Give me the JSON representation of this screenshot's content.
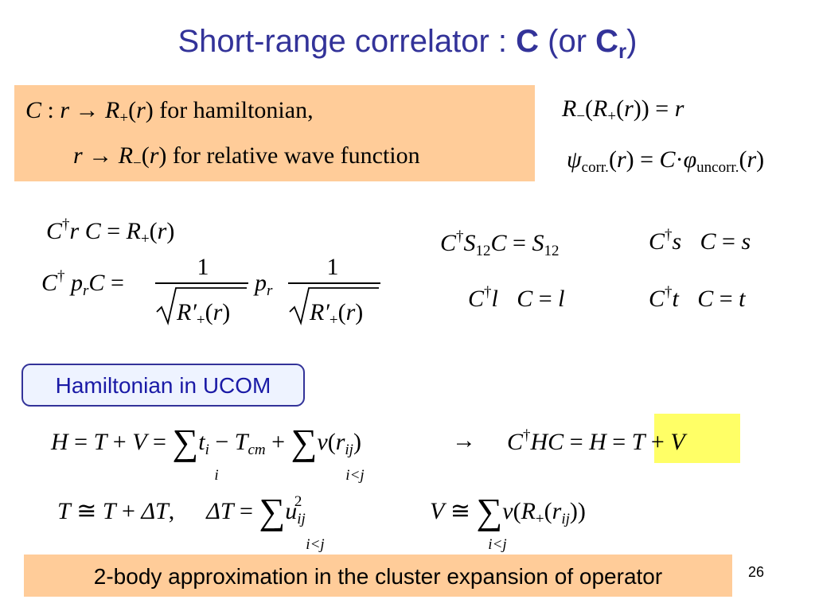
{
  "title": {
    "parts": [
      "Short-range correlator : ",
      "C",
      " (or ",
      "C",
      "r",
      ")"
    ]
  },
  "definition_box": {
    "line1": [
      "C",
      " :  ",
      "r",
      " → ",
      "R",
      "+",
      "(",
      "r",
      ")",
      " for hamiltonian,"
    ],
    "line2": [
      "r",
      " → ",
      "R",
      "−",
      "(",
      "r",
      ")",
      " for relative wave function"
    ]
  },
  "relations": [
    [
      "R",
      "−",
      "(",
      "R",
      "+",
      "(",
      "r",
      ")) = ",
      "r"
    ],
    [
      "ψ",
      "corr.",
      "(",
      "r",
      ") = ",
      "C",
      "·",
      "φ",
      "uncorr.",
      "(",
      "r",
      ")"
    ]
  ],
  "transforms": {
    "position": [
      "C",
      "†",
      "r  C",
      " = ",
      "R",
      "+",
      "(",
      "r",
      ")"
    ],
    "momentum": {
      "lhs": [
        "C",
        "†",
        " p",
        "r",
        "C",
        " = "
      ],
      "numerator": "1",
      "denominator": [
        "R′",
        "+",
        "(",
        "r",
        ")"
      ],
      "middle": [
        "p",
        "r"
      ]
    },
    "spin": [
      "C",
      "†",
      "S",
      "12",
      "C",
      " = ",
      "S",
      "12"
    ],
    "spin_vector": [
      "C",
      "†",
      "s⃗",
      "C",
      " = ",
      "s⃗"
    ],
    "angular": [
      "C",
      "†",
      "l⃗",
      "C",
      " = ",
      "l⃗"
    ],
    "isospin": [
      "C",
      "†",
      "t⃗",
      "C",
      " = ",
      "t⃗"
    ]
  },
  "hamiltonian_label": "Hamiltonian in UCOM",
  "hamiltonian": {
    "lhs": [
      "H",
      " = ",
      "T",
      " + ",
      "V",
      " = ",
      "∑",
      "t",
      "i",
      " − ",
      "T",
      "cm",
      " + ",
      "∑",
      "v",
      "(",
      "r",
      "ij",
      ")"
    ],
    "lhs_limits": [
      "i",
      "i<j"
    ],
    "arrow": "→",
    "rhs": [
      "C",
      "†",
      "HC",
      " = ",
      "H",
      " = ",
      "T",
      " + ",
      "V"
    ]
  },
  "kinetic": {
    "formula": [
      "T",
      " ≅ ",
      "T",
      " + ",
      "ΔT",
      ",",
      "ΔT",
      " = ",
      "∑",
      "u",
      "ij",
      "2"
    ],
    "limit": "i<j"
  },
  "potential": {
    "formula": [
      "V",
      " ≅ ",
      "∑",
      "v",
      "(",
      "R",
      "+",
      "(",
      "r",
      "ij",
      "))"
    ],
    "limit": "i<j"
  },
  "footer": "2-body approximation in the cluster expansion of operator",
  "page_number": "26"
}
